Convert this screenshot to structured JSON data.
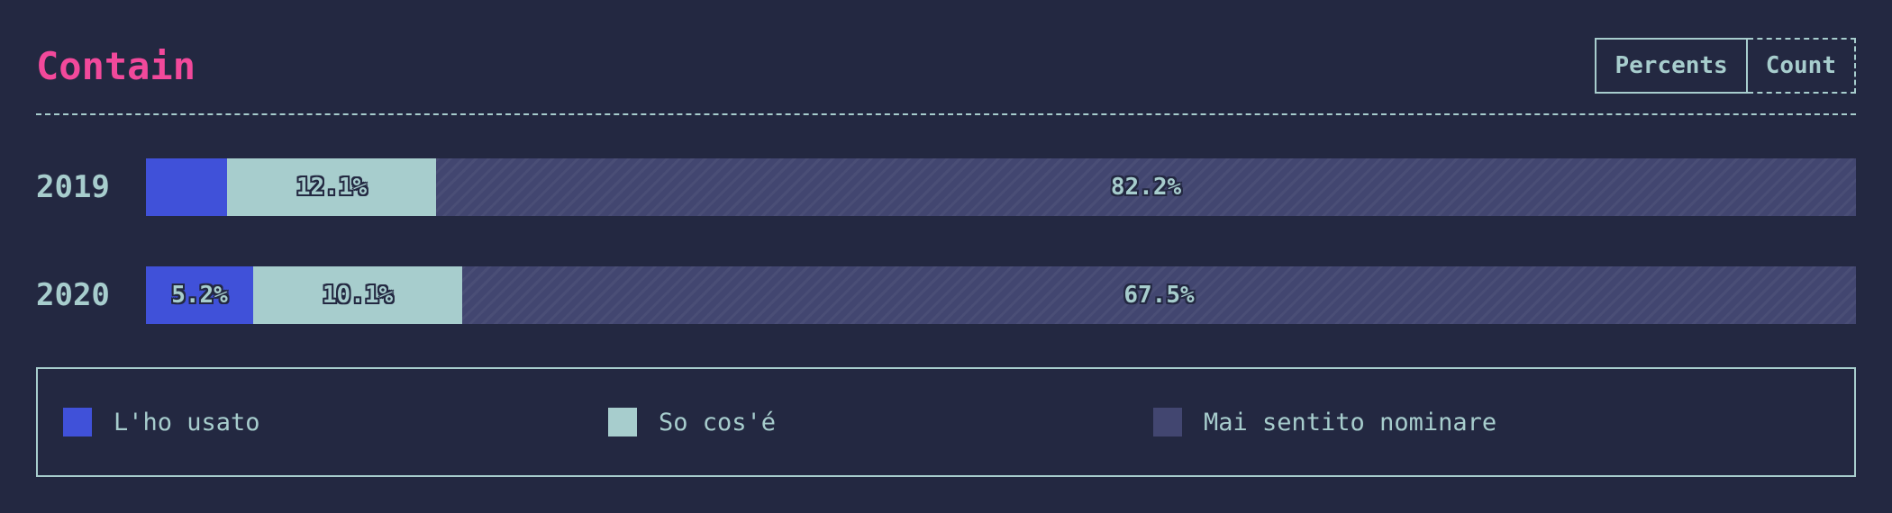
{
  "title": "Contain",
  "toggle": {
    "percents_label": "Percents",
    "count_label": "Count"
  },
  "colors": {
    "used": "#4051d9",
    "know": "#a7cdcd",
    "never": "#424670",
    "title": "#f2499b"
  },
  "chart_data": {
    "type": "bar",
    "orientation": "horizontal",
    "stacked": true,
    "categories": [
      "2019",
      "2020"
    ],
    "series": [
      {
        "name": "L'ho usato",
        "values": [
          4.7,
          5.2
        ],
        "labels": [
          "",
          "5.2%"
        ]
      },
      {
        "name": "So cos'é",
        "values": [
          12.1,
          10.1
        ],
        "labels": [
          "12.1%",
          "10.1%"
        ]
      },
      {
        "name": "Mai sentito nominare",
        "values": [
          82.2,
          67.5
        ],
        "labels": [
          "82.2%",
          "67.5%"
        ]
      }
    ],
    "legend": [
      "L'ho usato",
      "So cos'é",
      "Mai sentito nominare"
    ],
    "legend_placement": "bottom"
  }
}
